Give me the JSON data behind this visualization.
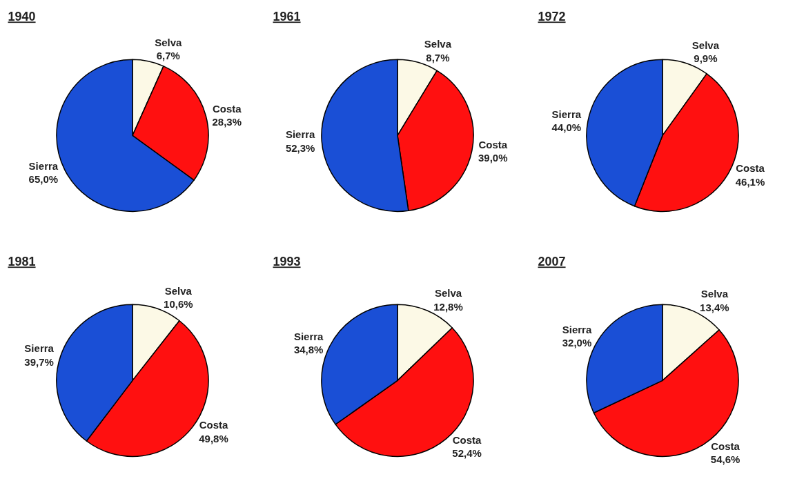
{
  "chart_data": [
    {
      "type": "pie",
      "title": "1940",
      "categories": [
        "Selva",
        "Costa",
        "Sierra"
      ],
      "values": [
        6.7,
        28.3,
        65.0
      ],
      "value_labels": [
        "6,7%",
        "28,3%",
        "65,0%"
      ],
      "colors": [
        "#fcf9e6",
        "#ff1010",
        "#1a4fd6"
      ]
    },
    {
      "type": "pie",
      "title": "1961",
      "categories": [
        "Selva",
        "Costa",
        "Sierra"
      ],
      "values": [
        8.7,
        39.0,
        52.3
      ],
      "value_labels": [
        "8,7%",
        "39,0%",
        "52,3%"
      ],
      "colors": [
        "#fcf9e6",
        "#ff1010",
        "#1a4fd6"
      ]
    },
    {
      "type": "pie",
      "title": "1972",
      "categories": [
        "Selva",
        "Costa",
        "Sierra"
      ],
      "values": [
        9.9,
        46.1,
        44.0
      ],
      "value_labels": [
        "9,9%",
        "46,1%",
        "44,0%"
      ],
      "colors": [
        "#fcf9e6",
        "#ff1010",
        "#1a4fd6"
      ]
    },
    {
      "type": "pie",
      "title": "1981",
      "categories": [
        "Selva",
        "Costa",
        "Sierra"
      ],
      "values": [
        10.6,
        49.8,
        39.7
      ],
      "value_labels": [
        "10,6%",
        "49,8%",
        "39,7%"
      ],
      "colors": [
        "#fcf9e6",
        "#ff1010",
        "#1a4fd6"
      ]
    },
    {
      "type": "pie",
      "title": "1993",
      "categories": [
        "Selva",
        "Costa",
        "Sierra"
      ],
      "values": [
        12.8,
        52.4,
        34.8
      ],
      "value_labels": [
        "12,8%",
        "52,4%",
        "34,8%"
      ],
      "colors": [
        "#fcf9e6",
        "#ff1010",
        "#1a4fd6"
      ]
    },
    {
      "type": "pie",
      "title": "2007",
      "categories": [
        "Selva",
        "Costa",
        "Sierra"
      ],
      "values": [
        13.4,
        54.6,
        32.0
      ],
      "value_labels": [
        "13,4%",
        "54,6%",
        "32,0%"
      ],
      "colors": [
        "#fcf9e6",
        "#ff1010",
        "#1a4fd6"
      ]
    }
  ]
}
